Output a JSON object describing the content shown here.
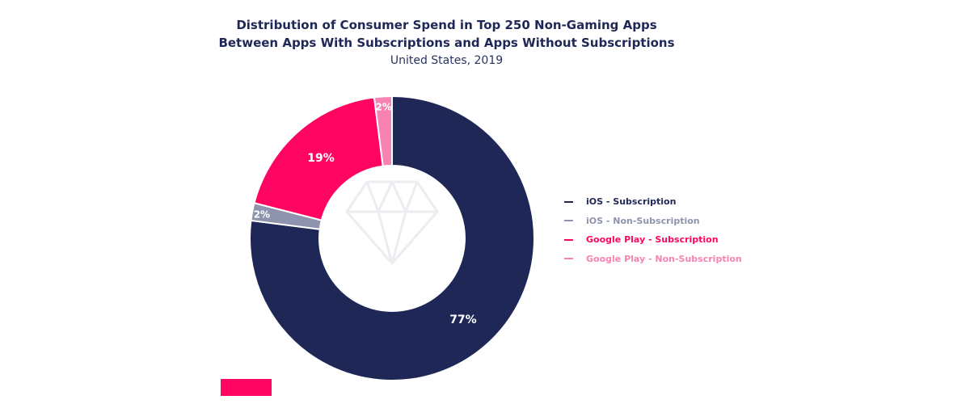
{
  "chart_data": {
    "type": "pie",
    "variant": "donut",
    "title_lines": [
      "Distribution of Consumer Spend in Top 250 Non-Gaming Apps",
      "Between Apps With Subscriptions and Apps Without Subscriptions"
    ],
    "subtitle": "United States, 2019",
    "legend_position": "right",
    "series": [
      {
        "name": "iOS - Subscription",
        "value": 77,
        "label": "77%",
        "color": "#1e2756"
      },
      {
        "name": "iOS - Non-Subscription",
        "value": 2,
        "label": "2%",
        "color": "#8e94ad"
      },
      {
        "name": "Google Play - Subscription",
        "value": 19,
        "label": "19%",
        "color": "#ff0561"
      },
      {
        "name": "Google Play - Non-Subscription",
        "value": 2,
        "label": "2%",
        "color": "#f783b3"
      }
    ]
  },
  "colors": {
    "corner_accent": "#ff0561",
    "watermark": "#ececf1"
  }
}
